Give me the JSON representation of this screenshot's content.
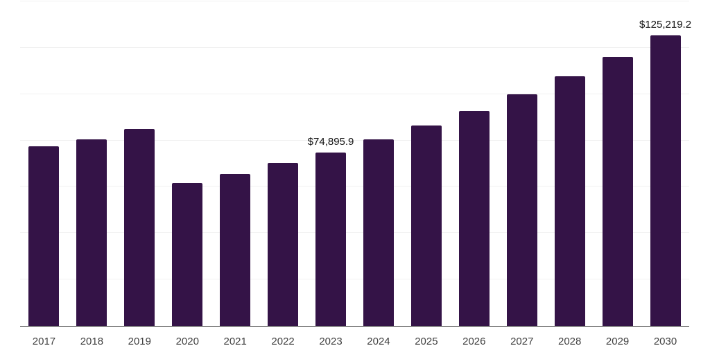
{
  "chart_data": {
    "type": "bar",
    "title": "",
    "xlabel": "",
    "ylabel": "",
    "categories": [
      "2017",
      "2018",
      "2019",
      "2020",
      "2021",
      "2022",
      "2023",
      "2024",
      "2025",
      "2026",
      "2027",
      "2028",
      "2029",
      "2030"
    ],
    "values": [
      77500,
      80600,
      84900,
      61700,
      65500,
      70300,
      74895.9,
      80600,
      86500,
      92800,
      100000,
      107800,
      116200,
      125219.2
    ],
    "data_labels": [
      {
        "category": "2023",
        "text": "$74,895.9"
      },
      {
        "category": "2030",
        "text": "$125,219.2"
      }
    ],
    "ylim": [
      0,
      140000
    ],
    "gridline_step": 20000,
    "grid_on": true,
    "y_tick_labels_shown": false,
    "legend_position": "none",
    "colors": {
      "bar": "#341347",
      "gridline": "#f1f1f1",
      "axis": "#3a3a3a",
      "tick_label": "#404040",
      "data_label": "#111111",
      "background": "#ffffff"
    }
  }
}
